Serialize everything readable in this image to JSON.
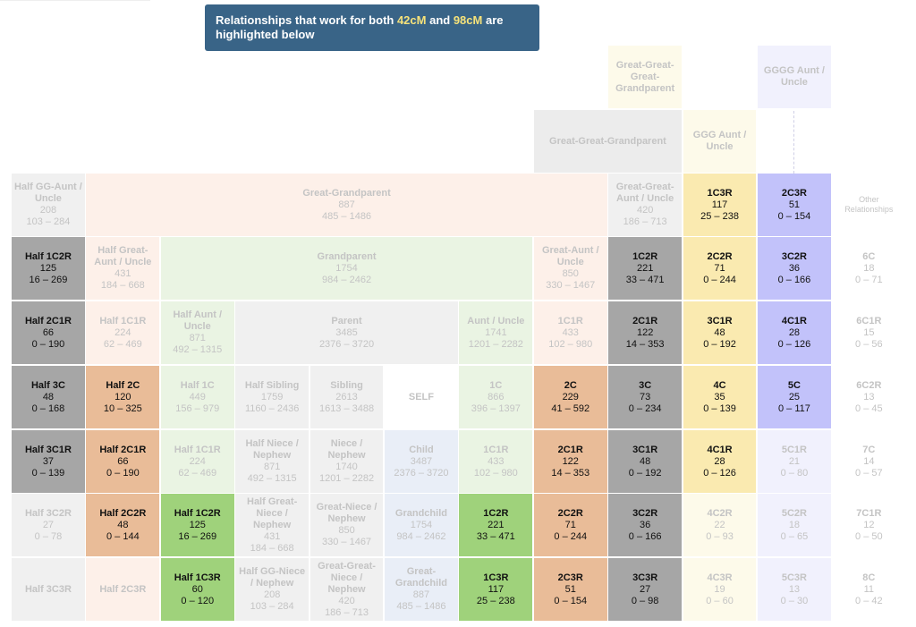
{
  "banner": {
    "prefix": "Relationships that work for both ",
    "value1": "42cM",
    "middle": " and ",
    "value2": "98cM",
    "suffix": " are highlighted below"
  },
  "colors": {
    "banner_bg": "#396487",
    "banner_highlight": "#f6e27a",
    "highlight_dark_gray": "#a6a6a6",
    "highlight_orange": "#e9bc98",
    "highlight_green": "#9fd27b",
    "highlight_yellow": "#faeab0",
    "highlight_lavender": "#c2c2fa"
  },
  "cells": [
    {
      "id": "great-great-great-grandparent",
      "col": 8,
      "row": 0,
      "bg": "#fdfaea",
      "faded": true,
      "title": "Great-Great-Great-Grandparent"
    },
    {
      "id": "gggg-aunt-uncle",
      "col": 10,
      "row": 0,
      "bg": "#f1f1fd",
      "faded": true,
      "title": "GGGG Aunt / Uncle"
    },
    {
      "id": "great-great-grandparent",
      "col": 7,
      "row": 1,
      "cs": 2,
      "bg": "#ececec",
      "faded": true,
      "title": "Great-Great-Grandparent"
    },
    {
      "id": "ggg-aunt-uncle",
      "col": 9,
      "row": 1,
      "bg": "#fdfaea",
      "faded": true,
      "title": "GGG Aunt / Uncle"
    },
    {
      "id": "half-gg-aunt-uncle",
      "col": 0,
      "row": 2,
      "bg": "#f0f0f0",
      "faded": true,
      "title": "Half GG-Aunt / Uncle",
      "cm": "208",
      "range": "103 – 284"
    },
    {
      "id": "great-grandparent",
      "col": 1,
      "row": 2,
      "cs": 7,
      "bg": "#fdf0e9",
      "faded": true,
      "title": "Great-Grandparent",
      "cm": "887",
      "range": "485 – 1486"
    },
    {
      "id": "great-great-aunt-uncle",
      "col": 8,
      "row": 2,
      "bg": "#f0f0f0",
      "faded": true,
      "title": "Great-Great-Aunt / Uncle",
      "cm": "420",
      "range": "186 – 713"
    },
    {
      "id": "1c3r-top",
      "col": 9,
      "row": 2,
      "bg": "#faeab0",
      "faded": false,
      "title": "1C3R",
      "cm": "117",
      "range": "25 – 238"
    },
    {
      "id": "2c3r-top",
      "col": 10,
      "row": 2,
      "bg": "#c2c2fa",
      "faded": false,
      "title": "2C3R",
      "cm": "51",
      "range": "0 – 154"
    },
    {
      "id": "other-relationships",
      "col": 11,
      "row": 2,
      "bg": "#ffffff",
      "faded": true,
      "small": true,
      "title": "Other Relationships"
    },
    {
      "id": "half-1c2r",
      "col": 0,
      "row": 3,
      "bg": "#a6a6a6",
      "faded": false,
      "title": "Half 1C2R",
      "cm": "125",
      "range": "16 – 269"
    },
    {
      "id": "half-great-aunt-uncle",
      "col": 1,
      "row": 3,
      "bg": "#fdf0e9",
      "faded": true,
      "title": "Half Great-Aunt / Uncle",
      "cm": "431",
      "range": "184 – 668"
    },
    {
      "id": "grandparent",
      "col": 2,
      "row": 3,
      "cs": 5,
      "bg": "#eaf4e3",
      "faded": true,
      "title": "Grandparent",
      "cm": "1754",
      "range": "984 – 2462"
    },
    {
      "id": "great-aunt-uncle",
      "col": 7,
      "row": 3,
      "bg": "#fdf0e9",
      "faded": true,
      "title": "Great-Aunt / Uncle",
      "cm": "850",
      "range": "330 – 1467"
    },
    {
      "id": "1c2r-top",
      "col": 8,
      "row": 3,
      "bg": "#a6a6a6",
      "faded": false,
      "title": "1C2R",
      "cm": "221",
      "range": "33 – 471"
    },
    {
      "id": "2c2r-top",
      "col": 9,
      "row": 3,
      "bg": "#faeab0",
      "faded": false,
      "title": "2C2R",
      "cm": "71",
      "range": "0 – 244"
    },
    {
      "id": "3c2r-top",
      "col": 10,
      "row": 3,
      "bg": "#c2c2fa",
      "faded": false,
      "title": "3C2R",
      "cm": "36",
      "range": "0 – 166"
    },
    {
      "id": "6c",
      "col": 11,
      "row": 3,
      "bg": "#ffffff",
      "faded": true,
      "title": "6C",
      "cm": "18",
      "range": "0 – 71"
    },
    {
      "id": "half-2c1r",
      "col": 0,
      "row": 4,
      "bg": "#a6a6a6",
      "faded": false,
      "title": "Half 2C1R",
      "cm": "66",
      "range": "0 – 190"
    },
    {
      "id": "half-1c1r-top",
      "col": 1,
      "row": 4,
      "bg": "#fdf0e9",
      "faded": true,
      "title": "Half 1C1R",
      "cm": "224",
      "range": "62 – 469"
    },
    {
      "id": "half-aunt-uncle",
      "col": 2,
      "row": 4,
      "bg": "#eaf4e3",
      "faded": true,
      "title": "Half Aunt / Uncle",
      "cm": "871",
      "range": "492 – 1315"
    },
    {
      "id": "parent",
      "col": 3,
      "row": 4,
      "cs": 3,
      "bg": "#f0f0f0",
      "faded": true,
      "title": "Parent",
      "cm": "3485",
      "range": "2376 – 3720"
    },
    {
      "id": "aunt-uncle",
      "col": 6,
      "row": 4,
      "bg": "#eaf4e3",
      "faded": true,
      "title": "Aunt / Uncle",
      "cm": "1741",
      "range": "1201 – 2282"
    },
    {
      "id": "1c1r-top",
      "col": 7,
      "row": 4,
      "bg": "#fdf0e9",
      "faded": true,
      "title": "1C1R",
      "cm": "433",
      "range": "102 – 980"
    },
    {
      "id": "2c1r-top",
      "col": 8,
      "row": 4,
      "bg": "#a6a6a6",
      "faded": false,
      "title": "2C1R",
      "cm": "122",
      "range": "14 – 353"
    },
    {
      "id": "3c1r-top",
      "col": 9,
      "row": 4,
      "bg": "#faeab0",
      "faded": false,
      "title": "3C1R",
      "cm": "48",
      "range": "0 – 192"
    },
    {
      "id": "4c1r-top",
      "col": 10,
      "row": 4,
      "bg": "#c2c2fa",
      "faded": false,
      "title": "4C1R",
      "cm": "28",
      "range": "0 – 126"
    },
    {
      "id": "6c1r",
      "col": 11,
      "row": 4,
      "bg": "#ffffff",
      "faded": true,
      "title": "6C1R",
      "cm": "15",
      "range": "0 – 56"
    },
    {
      "id": "half-3c",
      "col": 0,
      "row": 5,
      "bg": "#a6a6a6",
      "faded": false,
      "title": "Half 3C",
      "cm": "48",
      "range": "0 – 168"
    },
    {
      "id": "half-2c",
      "col": 1,
      "row": 5,
      "bg": "#e9bc98",
      "faded": false,
      "title": "Half 2C",
      "cm": "120",
      "range": "10 – 325"
    },
    {
      "id": "half-1c",
      "col": 2,
      "row": 5,
      "bg": "#eaf4e3",
      "faded": true,
      "title": "Half 1C",
      "cm": "449",
      "range": "156 – 979"
    },
    {
      "id": "half-sibling",
      "col": 3,
      "row": 5,
      "bg": "#f0f0f0",
      "faded": true,
      "title": "Half Sibling",
      "cm": "1759",
      "range": "1160 – 2436"
    },
    {
      "id": "sibling",
      "col": 4,
      "row": 5,
      "bg": "#f0f0f0",
      "faded": true,
      "title": "Sibling",
      "cm": "2613",
      "range": "1613 – 3488"
    },
    {
      "id": "self",
      "col": 5,
      "row": 5,
      "bg": "#ffffff",
      "faded": true,
      "title": "SELF"
    },
    {
      "id": "1c",
      "col": 6,
      "row": 5,
      "bg": "#eaf4e3",
      "faded": true,
      "title": "1C",
      "cm": "866",
      "range": "396 – 1397"
    },
    {
      "id": "2c",
      "col": 7,
      "row": 5,
      "bg": "#e9bc98",
      "faded": false,
      "title": "2C",
      "cm": "229",
      "range": "41 – 592"
    },
    {
      "id": "3c",
      "col": 8,
      "row": 5,
      "bg": "#a6a6a6",
      "faded": false,
      "title": "3C",
      "cm": "73",
      "range": "0 – 234"
    },
    {
      "id": "4c",
      "col": 9,
      "row": 5,
      "bg": "#faeab0",
      "faded": false,
      "title": "4C",
      "cm": "35",
      "range": "0 – 139"
    },
    {
      "id": "5c",
      "col": 10,
      "row": 5,
      "bg": "#c2c2fa",
      "faded": false,
      "title": "5C",
      "cm": "25",
      "range": "0 – 117"
    },
    {
      "id": "6c2r",
      "col": 11,
      "row": 5,
      "bg": "#ffffff",
      "faded": true,
      "title": "6C2R",
      "cm": "13",
      "range": "0 – 45"
    },
    {
      "id": "half-3c1r",
      "col": 0,
      "row": 6,
      "bg": "#a6a6a6",
      "faded": false,
      "title": "Half 3C1R",
      "cm": "37",
      "range": "0 – 139"
    },
    {
      "id": "half-2c1r-bottom",
      "col": 1,
      "row": 6,
      "bg": "#e9bc98",
      "faded": false,
      "title": "Half 2C1R",
      "cm": "66",
      "range": "0 – 190"
    },
    {
      "id": "half-1c1r-bottom",
      "col": 2,
      "row": 6,
      "bg": "#eaf4e3",
      "faded": true,
      "title": "Half 1C1R",
      "cm": "224",
      "range": "62 – 469"
    },
    {
      "id": "half-niece-nephew",
      "col": 3,
      "row": 6,
      "bg": "#f0f0f0",
      "faded": true,
      "title": "Half Niece / Nephew",
      "cm": "871",
      "range": "492 – 1315"
    },
    {
      "id": "niece-nephew",
      "col": 4,
      "row": 6,
      "bg": "#f0f0f0",
      "faded": true,
      "title": "Niece / Nephew",
      "cm": "1740",
      "range": "1201 – 2282"
    },
    {
      "id": "child",
      "col": 5,
      "row": 6,
      "bg": "#e9eef7",
      "faded": true,
      "title": "Child",
      "cm": "3487",
      "range": "2376 – 3720"
    },
    {
      "id": "1c1r-bottom",
      "col": 6,
      "row": 6,
      "bg": "#eaf4e3",
      "faded": true,
      "title": "1C1R",
      "cm": "433",
      "range": "102 – 980"
    },
    {
      "id": "2c1r-bottom",
      "col": 7,
      "row": 6,
      "bg": "#e9bc98",
      "faded": false,
      "title": "2C1R",
      "cm": "122",
      "range": "14 – 353"
    },
    {
      "id": "3c1r-bottom",
      "col": 8,
      "row": 6,
      "bg": "#a6a6a6",
      "faded": false,
      "title": "3C1R",
      "cm": "48",
      "range": "0 – 192"
    },
    {
      "id": "4c1r-bottom",
      "col": 9,
      "row": 6,
      "bg": "#faeab0",
      "faded": false,
      "title": "4C1R",
      "cm": "28",
      "range": "0 – 126"
    },
    {
      "id": "5c1r",
      "col": 10,
      "row": 6,
      "bg": "#f1f1fd",
      "faded": true,
      "title": "5C1R",
      "cm": "21",
      "range": "0 – 80"
    },
    {
      "id": "7c",
      "col": 11,
      "row": 6,
      "bg": "#ffffff",
      "faded": true,
      "title": "7C",
      "cm": "14",
      "range": "0 – 57"
    },
    {
      "id": "half-3c2r",
      "col": 0,
      "row": 7,
      "bg": "#f0f0f0",
      "faded": true,
      "title": "Half 3C2R",
      "cm": "27",
      "range": "0 – 78"
    },
    {
      "id": "half-2c2r",
      "col": 1,
      "row": 7,
      "bg": "#e9bc98",
      "faded": false,
      "title": "Half 2C2R",
      "cm": "48",
      "range": "0 – 144"
    },
    {
      "id": "half-1c2r-bottom",
      "col": 2,
      "row": 7,
      "bg": "#9fd27b",
      "faded": false,
      "title": "Half 1C2R",
      "cm": "125",
      "range": "16 – 269"
    },
    {
      "id": "half-great-niece-nephew",
      "col": 3,
      "row": 7,
      "bg": "#f0f0f0",
      "faded": true,
      "title": "Half Great-Niece / Nephew",
      "cm": "431",
      "range": "184 – 668"
    },
    {
      "id": "great-niece-nephew",
      "col": 4,
      "row": 7,
      "bg": "#f0f0f0",
      "faded": true,
      "title": "Great-Niece / Nephew",
      "cm": "850",
      "range": "330 – 1467"
    },
    {
      "id": "grandchild",
      "col": 5,
      "row": 7,
      "bg": "#e9eef7",
      "faded": true,
      "title": "Grandchild",
      "cm": "1754",
      "range": "984 – 2462"
    },
    {
      "id": "1c2r-bottom",
      "col": 6,
      "row": 7,
      "bg": "#9fd27b",
      "faded": false,
      "title": "1C2R",
      "cm": "221",
      "range": "33 – 471"
    },
    {
      "id": "2c2r-bottom",
      "col": 7,
      "row": 7,
      "bg": "#e9bc98",
      "faded": false,
      "title": "2C2R",
      "cm": "71",
      "range": "0 – 244"
    },
    {
      "id": "3c2r-bottom",
      "col": 8,
      "row": 7,
      "bg": "#a6a6a6",
      "faded": false,
      "title": "3C2R",
      "cm": "36",
      "range": "0 – 166"
    },
    {
      "id": "4c2r",
      "col": 9,
      "row": 7,
      "bg": "#fdfaea",
      "faded": true,
      "title": "4C2R",
      "cm": "22",
      "range": "0 – 93"
    },
    {
      "id": "5c2r",
      "col": 10,
      "row": 7,
      "bg": "#f1f1fd",
      "faded": true,
      "title": "5C2R",
      "cm": "18",
      "range": "0 – 65"
    },
    {
      "id": "7c1r",
      "col": 11,
      "row": 7,
      "bg": "#ffffff",
      "faded": true,
      "title": "7C1R",
      "cm": "12",
      "range": "0 – 50"
    },
    {
      "id": "half-3c3r",
      "col": 0,
      "row": 8,
      "bg": "#f0f0f0",
      "faded": true,
      "title": "Half 3C3R"
    },
    {
      "id": "half-2c3r",
      "col": 1,
      "row": 8,
      "bg": "#fdf0e9",
      "faded": true,
      "title": "Half 2C3R"
    },
    {
      "id": "half-1c3r",
      "col": 2,
      "row": 8,
      "bg": "#9fd27b",
      "faded": false,
      "title": "Half 1C3R",
      "cm": "60",
      "range": "0 – 120"
    },
    {
      "id": "half-gg-niece-nephew",
      "col": 3,
      "row": 8,
      "bg": "#f0f0f0",
      "faded": true,
      "title": "Half GG-Niece / Nephew",
      "cm": "208",
      "range": "103 – 284"
    },
    {
      "id": "great-great-niece-nephew",
      "col": 4,
      "row": 8,
      "bg": "#f0f0f0",
      "faded": true,
      "title": "Great-Great-Niece / Nephew",
      "cm": "420",
      "range": "186 – 713"
    },
    {
      "id": "great-grandchild",
      "col": 5,
      "row": 8,
      "bg": "#e9eef7",
      "faded": true,
      "title": "Great-Grandchild",
      "cm": "887",
      "range": "485 – 1486"
    },
    {
      "id": "1c3r-bottom",
      "col": 6,
      "row": 8,
      "bg": "#9fd27b",
      "faded": false,
      "title": "1C3R",
      "cm": "117",
      "range": "25 – 238"
    },
    {
      "id": "2c3r-bottom",
      "col": 7,
      "row": 8,
      "bg": "#e9bc98",
      "faded": false,
      "title": "2C3R",
      "cm": "51",
      "range": "0 – 154"
    },
    {
      "id": "3c3r",
      "col": 8,
      "row": 8,
      "bg": "#a6a6a6",
      "faded": false,
      "title": "3C3R",
      "cm": "27",
      "range": "0 – 98"
    },
    {
      "id": "4c3r",
      "col": 9,
      "row": 8,
      "bg": "#fdfaea",
      "faded": true,
      "title": "4C3R",
      "cm": "19",
      "range": "0 – 60"
    },
    {
      "id": "5c3r",
      "col": 10,
      "row": 8,
      "bg": "#f1f1fd",
      "faded": true,
      "title": "5C3R",
      "cm": "13",
      "range": "0 – 30"
    },
    {
      "id": "8c",
      "col": 11,
      "row": 8,
      "bg": "#ffffff",
      "faded": true,
      "title": "8C",
      "cm": "11",
      "range": "0 – 42"
    }
  ]
}
